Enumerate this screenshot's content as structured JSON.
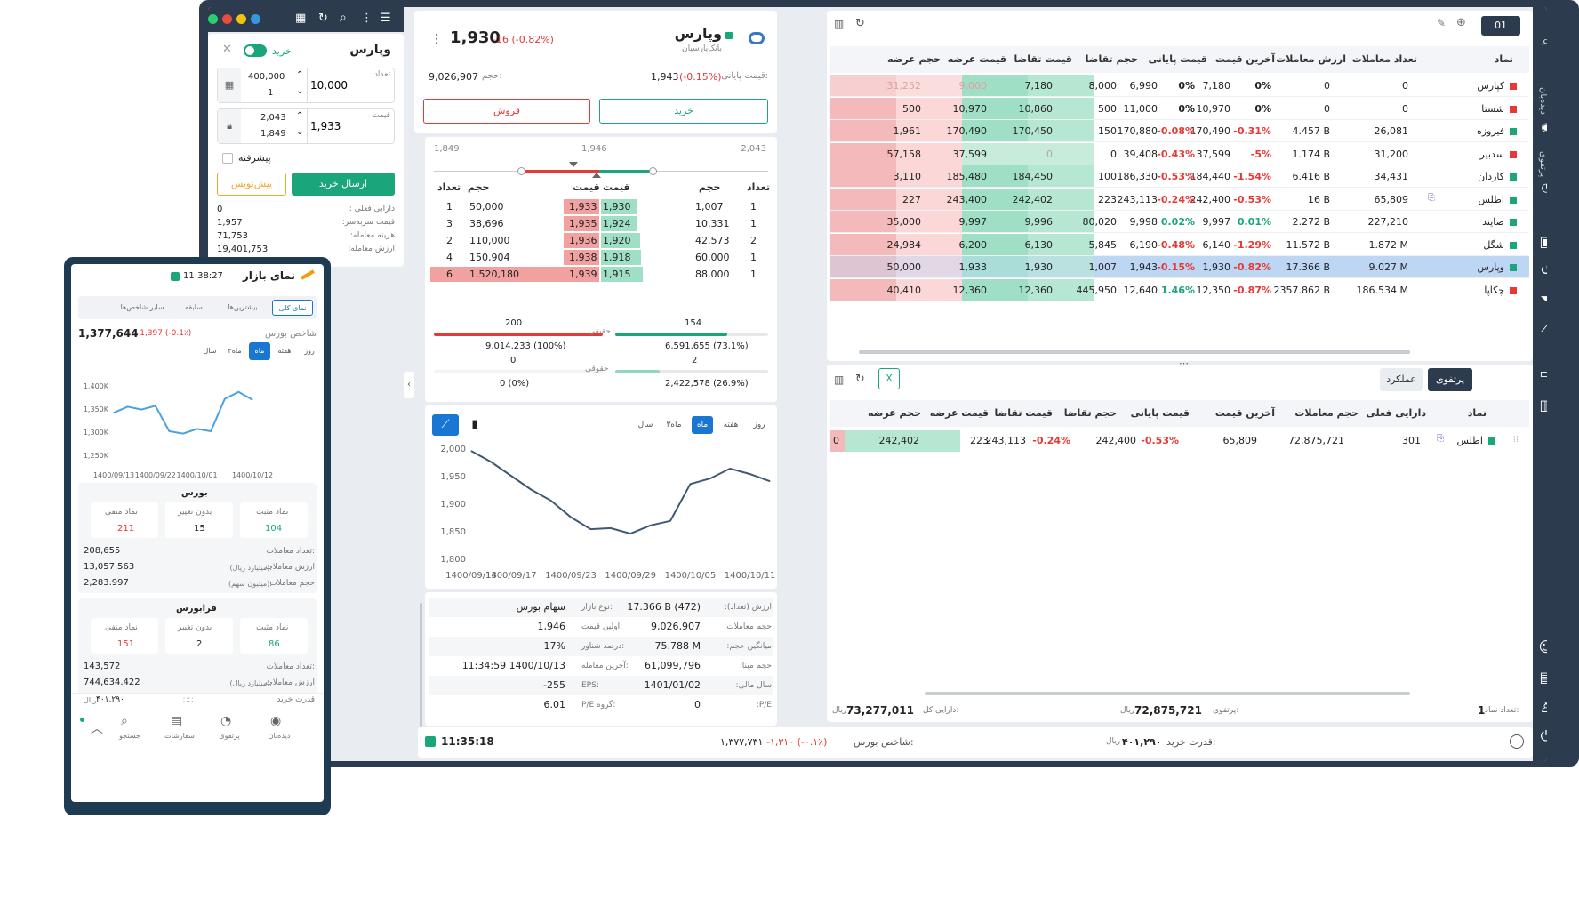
{
  "order": {
    "symbol": "وپارس",
    "side_label": "خرید",
    "qty_label": "تعداد",
    "qty_value": "10,000",
    "qty_max": "400,000",
    "qty_min": "1",
    "price_label": "قیمت",
    "price_value": "1,933",
    "price_max": "2,043",
    "price_min": "1,849",
    "advanced_label": "پیشرفته",
    "send_label": "ارسال خرید",
    "draft_label": "پیش‌نویس",
    "info": [
      {
        "label": "دارایی فعلی :",
        "value": "0"
      },
      {
        "label": "قیمت سربه‌سر:",
        "value": "1,957"
      },
      {
        "label": "هزینه معامله:",
        "value": "71,753"
      },
      {
        "label": "ارزش معامله:",
        "value": "19,401,753"
      }
    ]
  },
  "instrument": {
    "symbol": "وپارس",
    "company": "بانک‌پارسیان",
    "last_price": "1,930",
    "last_change": "-16 (-0.82%)",
    "close_label": "قیمت پایانی:",
    "close_price": "1,943",
    "close_change": "(-0.15%)",
    "volume_label": "حجم:",
    "volume": "9,026,907",
    "buy_label": "خرید",
    "sell_label": "فروش",
    "range_low": "1,849",
    "range_mid": "1,946",
    "range_high": "2,043"
  },
  "orderbook": {
    "headers": [
      "تعداد",
      "حجم",
      "قیمت",
      "قیمت",
      "حجم",
      "تعداد"
    ],
    "rows": [
      {
        "sell_count": "1",
        "sell_vol": "50,000",
        "sell_price": "1,933",
        "buy_price": "1,930",
        "buy_vol": "1,007",
        "buy_count": "1",
        "sw": 0.04,
        "bw": 0.01
      },
      {
        "sell_count": "3",
        "sell_vol": "38,696",
        "sell_price": "1,935",
        "buy_price": "1,924",
        "buy_vol": "10,331",
        "buy_count": "1",
        "sw": 0.03,
        "bw": 0.01
      },
      {
        "sell_count": "2",
        "sell_vol": "110,000",
        "sell_price": "1,936",
        "buy_price": "1,920",
        "buy_vol": "42,573",
        "buy_count": "2",
        "sw": 0.07,
        "bw": 0.05
      },
      {
        "sell_count": "4",
        "sell_vol": "150,904",
        "sell_price": "1,938",
        "buy_price": "1,918",
        "buy_vol": "60,000",
        "buy_count": "1",
        "sw": 0.1,
        "bw": 0.07
      },
      {
        "sell_count": "6",
        "sell_vol": "1,520,180",
        "sell_price": "1,939",
        "buy_price": "1,915",
        "buy_vol": "88,000",
        "buy_count": "1",
        "sw": 1.0,
        "bw": 0.1
      }
    ]
  },
  "legal": {
    "real_label": "حقیقی",
    "legal_label": "حقوقی",
    "sell_real_count": "200",
    "sell_real_vol": "9,014,233 (100%)",
    "buy_real_count": "154",
    "buy_real_vol": "6,591,655 (73.1%)",
    "sell_legal_count": "0",
    "sell_legal_vol": "0 (0%)",
    "buy_legal_count": "2",
    "buy_legal_vol": "2,422,578 (26.9%)"
  },
  "chart_data": [
    {
      "type": "line",
      "title": "",
      "periods": [
        "روز",
        "هفته",
        "ماه",
        "۳ماه",
        "سال"
      ],
      "active_period": "ماه",
      "x": [
        "1400/09/13",
        "1400/09/15",
        "1400/09/17",
        "1400/09/19",
        "1400/09/21",
        "1400/09/23",
        "1400/09/25",
        "1400/09/27",
        "1400/09/29",
        "1400/10/01",
        "1400/10/03",
        "1400/10/05",
        "1400/10/07",
        "1400/10/09",
        "1400/10/11",
        "1400/10/13"
      ],
      "x_ticks": [
        "1400/09/13",
        "1400/09/17",
        "1400/09/23",
        "1400/09/29",
        "1400/10/05",
        "1400/10/11"
      ],
      "values": [
        1995,
        1975,
        1950,
        1925,
        1905,
        1875,
        1853,
        1855,
        1845,
        1860,
        1868,
        1935,
        1945,
        1963,
        1953,
        1940
      ],
      "ylim": [
        1800,
        2000
      ],
      "y_ticks": [
        "2,000",
        "1,950",
        "1,900",
        "1,850",
        "1,800"
      ]
    },
    {
      "type": "line",
      "title": "",
      "periods": [
        "روز",
        "هفته",
        "ماه",
        "۳ماه",
        "سال"
      ],
      "active_period": "ماه",
      "x": [
        "1400/09/13",
        "1400/09/16",
        "1400/09/19",
        "1400/09/22",
        "1400/09/25",
        "1400/09/28",
        "1400/10/01",
        "1400/10/04",
        "1400/10/07",
        "1400/10/10",
        "1400/10/12"
      ],
      "x_ticks": [
        "1400/09/13",
        "1400/09/22",
        "1400/10/01",
        "1400/10/12"
      ],
      "values": [
        1340000,
        1353000,
        1347000,
        1355000,
        1300000,
        1295000,
        1305000,
        1300000,
        1370000,
        1385000,
        1368000
      ],
      "ylim": [
        1250000,
        1400000
      ],
      "y_ticks": [
        "1,400K",
        "1,350K",
        "1,300K",
        "1,250K"
      ]
    }
  ],
  "stats": [
    {
      "label": "ارزش (تعداد):",
      "value": "17.366 B (472)",
      "label2": "نوع بازار:",
      "value2": "سهام بورس"
    },
    {
      "label": "حجم معاملات:",
      "value": "9,026,907",
      "label2": "اولین قیمت:",
      "value2": "1,946"
    },
    {
      "label": "میانگین حجم:",
      "value": "75.788 M",
      "label2": "درصد شناور:",
      "value2": "17%"
    },
    {
      "label": "حجم مبنا:",
      "value": "61,099,796",
      "label2": "آخرین معامله:",
      "value2": "11:34:59 1400/10/13"
    },
    {
      "label": "سال مالی:",
      "value": "1401/01/02",
      "label2": "EPS:",
      "value2": "-255"
    },
    {
      "label": "P/E:",
      "value": "0",
      "label2": "P/E گروه:",
      "value2": "6.01"
    }
  ],
  "watchlist": {
    "tab": "01",
    "headers": [
      "نماد",
      "تعداد معاملات",
      "ارزش معاملات",
      "آخرین قیمت",
      "قیمت پایانی",
      "حجم تقاضا",
      "قیمت تقاضا",
      "قیمت عرضه",
      "حجم عرضه"
    ],
    "rows": [
      {
        "symbol": "کپارس",
        "color": "#e53935",
        "count": "0",
        "value": "0",
        "last": "7,180",
        "last_pct": "0%",
        "close": "6,990",
        "close_pct": "0%",
        "bid_vol": "8,000",
        "bid": "7,180",
        "ask": "9,000",
        "ask_vol": "31,252",
        "bid_w": 1.0,
        "ask_w": 1.0,
        "dim": true
      },
      {
        "symbol": "شستا",
        "color": "#e53935",
        "count": "0",
        "value": "0",
        "last": "10,970",
        "last_pct": "0%",
        "close": "11,000",
        "close_pct": "0%",
        "bid_vol": "500",
        "bid": "10,860",
        "ask": "10,970",
        "ask_vol": "500",
        "bid_w": 0.5,
        "ask_w": 0.4
      },
      {
        "symbol": "فیروزه",
        "color": "#1aa67a",
        "count": "26,081",
        "value": "4.457 B",
        "last": "170,490",
        "last_pct": "-0.31%",
        "close": "170,880",
        "close_pct": "-0.08%",
        "bid_vol": "150",
        "bid": "170,450",
        "ask": "170,490",
        "ask_vol": "1,961",
        "bid_w": 0.5,
        "ask_w": 0.4
      },
      {
        "symbol": "سدبیر",
        "color": "#e53935",
        "count": "31,200",
        "value": "1.174 B",
        "last": "37,599",
        "last_pct": "-5%",
        "close": "39,408",
        "close_pct": "-0.43%",
        "bid_vol": "0",
        "bid": "0",
        "ask": "37,599",
        "ask_vol": "57,158",
        "bid_w": 1.0,
        "ask_w": 1.0,
        "dimbid": true
      },
      {
        "symbol": "کاردان",
        "color": "#1aa67a",
        "count": "34,431",
        "value": "6.416 B",
        "last": "184,440",
        "last_pct": "-1.54%",
        "close": "186,330",
        "close_pct": "-0.53%",
        "bid_vol": "100",
        "bid": "184,450",
        "ask": "185,480",
        "ask_vol": "3,110",
        "bid_w": 0.5,
        "ask_w": 0.4
      },
      {
        "symbol": "اطلس",
        "color": "#1aa67a",
        "count": "65,809",
        "value": "16 B",
        "last": "242,400",
        "last_pct": "-0.53%",
        "close": "243,113",
        "close_pct": "-0.24%",
        "bid_vol": "223",
        "bid": "242,402",
        "ask": "243,400",
        "ask_vol": "227",
        "bid_w": 0.5,
        "ask_w": 0.4,
        "badge": true
      },
      {
        "symbol": "صایند",
        "color": "#1aa67a",
        "count": "227,210",
        "value": "2.272 B",
        "last": "9,997",
        "last_pct": "0.01%",
        "close": "9,998",
        "close_pct": "0.02%",
        "bid_vol": "80,020",
        "bid": "9,996",
        "ask": "9,997",
        "ask_vol": "35,000",
        "bid_w": 1.0,
        "ask_w": 1.0
      },
      {
        "symbol": "شگل",
        "color": "#1aa67a",
        "count": "1.872 M",
        "value": "11.572 B",
        "last": "6,140",
        "last_pct": "-1.29%",
        "close": "6,190",
        "close_pct": "-0.48%",
        "bid_vol": "5,845",
        "bid": "6,130",
        "ask": "6,200",
        "ask_vol": "24,984",
        "bid_w": 0.5,
        "ask_w": 1.0
      },
      {
        "symbol": "وپارس",
        "color": "#1aa67a",
        "count": "9.027 M",
        "value": "17.366 B",
        "last": "1,930",
        "last_pct": "-0.82%",
        "close": "1,943",
        "close_pct": "-0.15%",
        "bid_vol": "1,007",
        "bid": "1,930",
        "ask": "1,933",
        "ask_vol": "50,000",
        "bid_w": 0.5,
        "ask_w": 1.0,
        "selected": true
      },
      {
        "symbol": "چکاپا",
        "color": "#e53935",
        "count": "186.534 M",
        "value": "2357.862 B",
        "last": "12,350",
        "last_pct": "-0.87%",
        "close": "12,640",
        "close_pct": "1.46%",
        "bid_vol": "445,950",
        "bid": "12,360",
        "ask": "12,360",
        "ask_vol": "40,410",
        "bid_w": 1.0,
        "ask_w": 1.0
      }
    ]
  },
  "portfolio": {
    "tab_active": "پرتفوی",
    "tab_other": "عملکرد",
    "headers": [
      "نماد",
      "دارایی فعلی",
      "حجم معاملات",
      "آخرین قیمت",
      "قیمت پایانی",
      "حجم تقاضا",
      "قیمت تقاضا",
      "قیمت عرضه",
      "حجم عرضه"
    ],
    "row": {
      "symbol": "اطلس",
      "holding": "301",
      "volume": "72,875,721",
      "last": "65,809",
      "close": "242,400",
      "close_pct": "-0.53%",
      "bid_vol": "243,113",
      "bid_pct": "-0.24%",
      "bid": "223",
      "ask": "242,402",
      "ask_vol": "0"
    },
    "count_label": "تعداد نماد:",
    "count": "1",
    "portfolio_label": "پرتفوی:",
    "portfolio_value": "72,875,721",
    "portfolio_unit": "ریال",
    "asset_label": "دارایی کل:",
    "asset_value": "73,277,011",
    "asset_unit": "ریال"
  },
  "statusbar": {
    "time": "11:35:18",
    "index_label": "شاخص بورس:",
    "index_value": "۱,۳۷۷,۷۳۱",
    "index_change": "-۱,۳۱۰ (-۰.۱٪)",
    "buy_power_label": "قدرت خرید:",
    "buy_power_value": "۴۰۱,۲۹۰",
    "buy_power_unit": "ریال"
  },
  "sidebar": {
    "watch_label": "دیده‌بان",
    "portfolio_label": "پرتفوی"
  },
  "mobile": {
    "title": "نمای بازار",
    "time": "11:38:27",
    "tabs": [
      "نمای کلی",
      "بیشترین‌ها",
      "سابقه",
      "سایر شاخص‌ها"
    ],
    "index_name": "شاخص بورس",
    "index_value": "1,377,644",
    "index_change": "-1,397 (-0.1٪)",
    "bourse_title": "بورس",
    "fara_title": "فرابورس",
    "positive_label": "نماد مثبت",
    "neutral_label": "بدون تغییر",
    "negative_label": "نماد منفی",
    "bourse_positive": "104",
    "bourse_neutral": "15",
    "bourse_negative": "211",
    "fara_positive": "86",
    "fara_neutral": "2",
    "fara_negative": "151",
    "trades_label": "تعداد معاملات:",
    "value_label": "ارزش معاملات",
    "value_unit": "(میلیارد ریال):",
    "volume_label": "حجم معاملات",
    "volume_unit": "(میلیون سهم):",
    "bourse_trades": "208,655",
    "bourse_value": "13,057.563",
    "bourse_volume": "2,283.997",
    "fara_trades": "143,572",
    "fara_value": "744,634.422",
    "buy_power_label": "قدرت خرید",
    "buy_power_value": "۴۰۱,۲۹۰",
    "buy_power_unit": "ریال",
    "nav": [
      "دیده‌بان",
      "پرتفوی",
      "سفارشات",
      "جستجو"
    ]
  }
}
